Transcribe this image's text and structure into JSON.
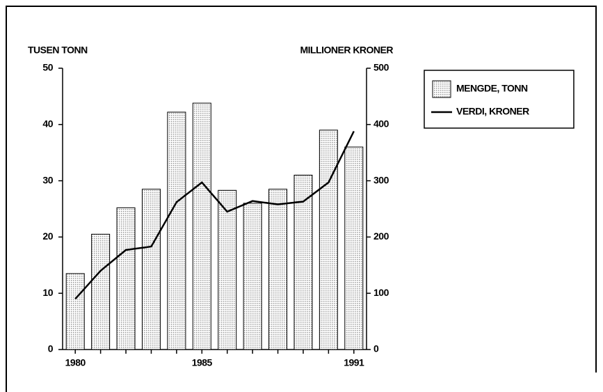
{
  "chart_data": {
    "type": "bar",
    "ylabel": "TUSEN TONN",
    "y2label": "MILLIONER KRONER",
    "categories": [
      "1980",
      null,
      null,
      null,
      null,
      "1985",
      null,
      null,
      null,
      null,
      null,
      "1991"
    ],
    "series": [
      {
        "name": "MENGDE, TONN",
        "type": "bar",
        "color": "#9a9a9a",
        "values": [
          13.5,
          20.5,
          25.2,
          28.5,
          42.2,
          43.8,
          28.3,
          26,
          28.5,
          31,
          39,
          36
        ]
      },
      {
        "name": "VERDI, KRONER",
        "type": "line",
        "axis": "y2",
        "color": "#000000",
        "values": [
          90,
          140,
          177,
          183,
          262,
          297,
          245,
          264,
          258,
          263,
          297,
          388
        ]
      }
    ],
    "ylim": [
      0,
      50
    ],
    "yticks": [
      0,
      10,
      20,
      30,
      40,
      50
    ],
    "y2lim": [
      0,
      500
    ],
    "y2ticks": [
      0,
      100,
      200,
      300,
      400,
      500
    ],
    "legend": "right"
  }
}
